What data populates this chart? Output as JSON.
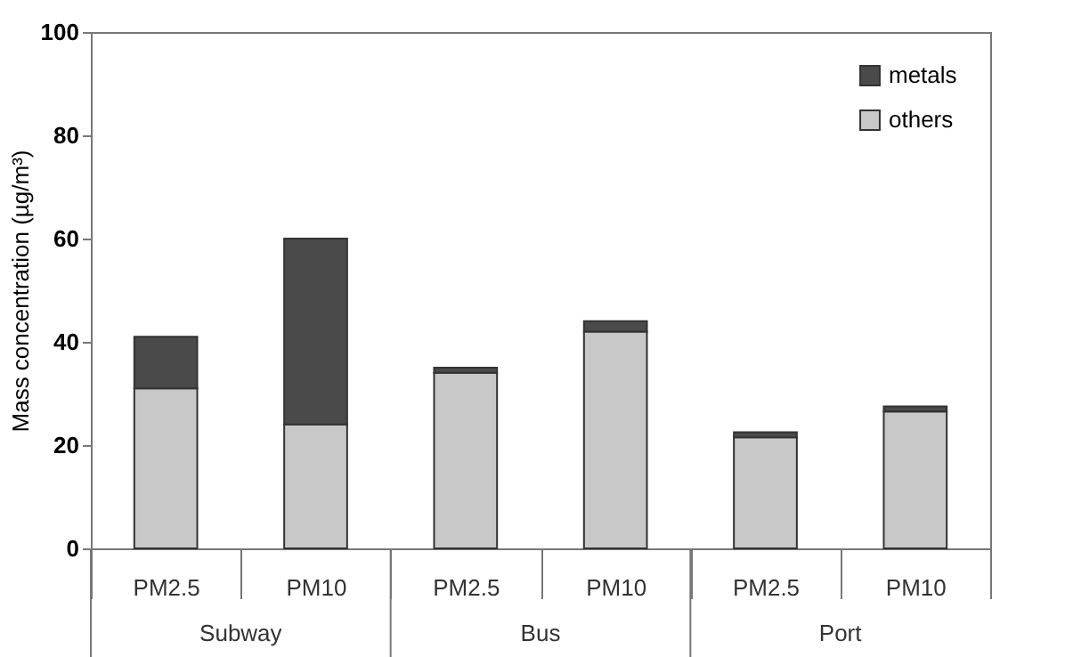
{
  "chart_data": {
    "type": "bar",
    "stacked": true,
    "ylabel": "Mass concentration (µg/m³)",
    "categories": [
      "PM2.5",
      "PM10",
      "PM2.5",
      "PM10",
      "PM2.5",
      "PM10"
    ],
    "series": [
      {
        "name": "others",
        "color": "#c8c8c8",
        "values": [
          31,
          24,
          34,
          42,
          21.5,
          26.5
        ]
      },
      {
        "name": "metals",
        "color": "#4a4a4a",
        "values": [
          10,
          36,
          1,
          2,
          1,
          1
        ]
      }
    ],
    "ylim": [
      0,
      100
    ],
    "yticks": [
      0,
      20,
      40,
      60,
      80,
      100
    ],
    "grid": false,
    "legend": "top right",
    "annotations": [
      "Subway",
      "Bus",
      "Port"
    ]
  }
}
